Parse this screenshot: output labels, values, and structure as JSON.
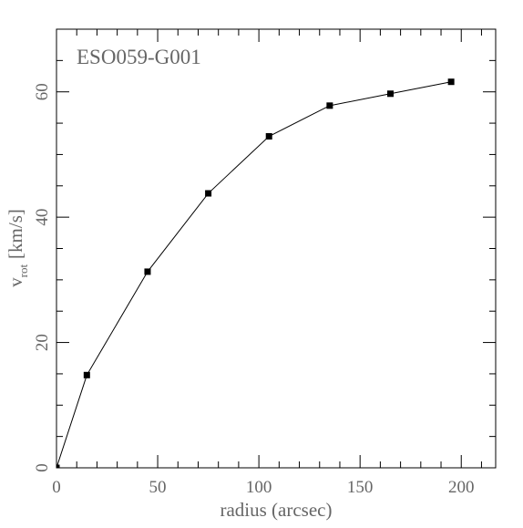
{
  "chart_data": {
    "type": "line",
    "title": "ESO059-G001",
    "xlabel": "radius (arcsec)",
    "ylabel": {
      "symbol": "v",
      "subscript": "rot",
      "unit": "[km/s]"
    },
    "x": [
      0,
      15,
      45,
      75,
      105,
      135,
      165,
      195
    ],
    "series": [
      {
        "color": "#000000",
        "values": [
          0,
          14.8,
          31.3,
          43.8,
          52.9,
          57.8,
          59.7,
          61.6
        ]
      }
    ],
    "xlim": [
      0,
      217
    ],
    "ylim": [
      0,
      70
    ],
    "xticks": [
      0,
      50,
      100,
      150,
      200
    ],
    "yticks": [
      0,
      20,
      40,
      60
    ],
    "xminorticks": [
      10,
      20,
      30,
      40,
      60,
      70,
      80,
      90,
      110,
      120,
      130,
      140,
      160,
      170,
      180,
      190,
      210
    ],
    "yminorticks": [
      5,
      10,
      15,
      25,
      30,
      35,
      45,
      50,
      55,
      65
    ],
    "grid": false
  }
}
